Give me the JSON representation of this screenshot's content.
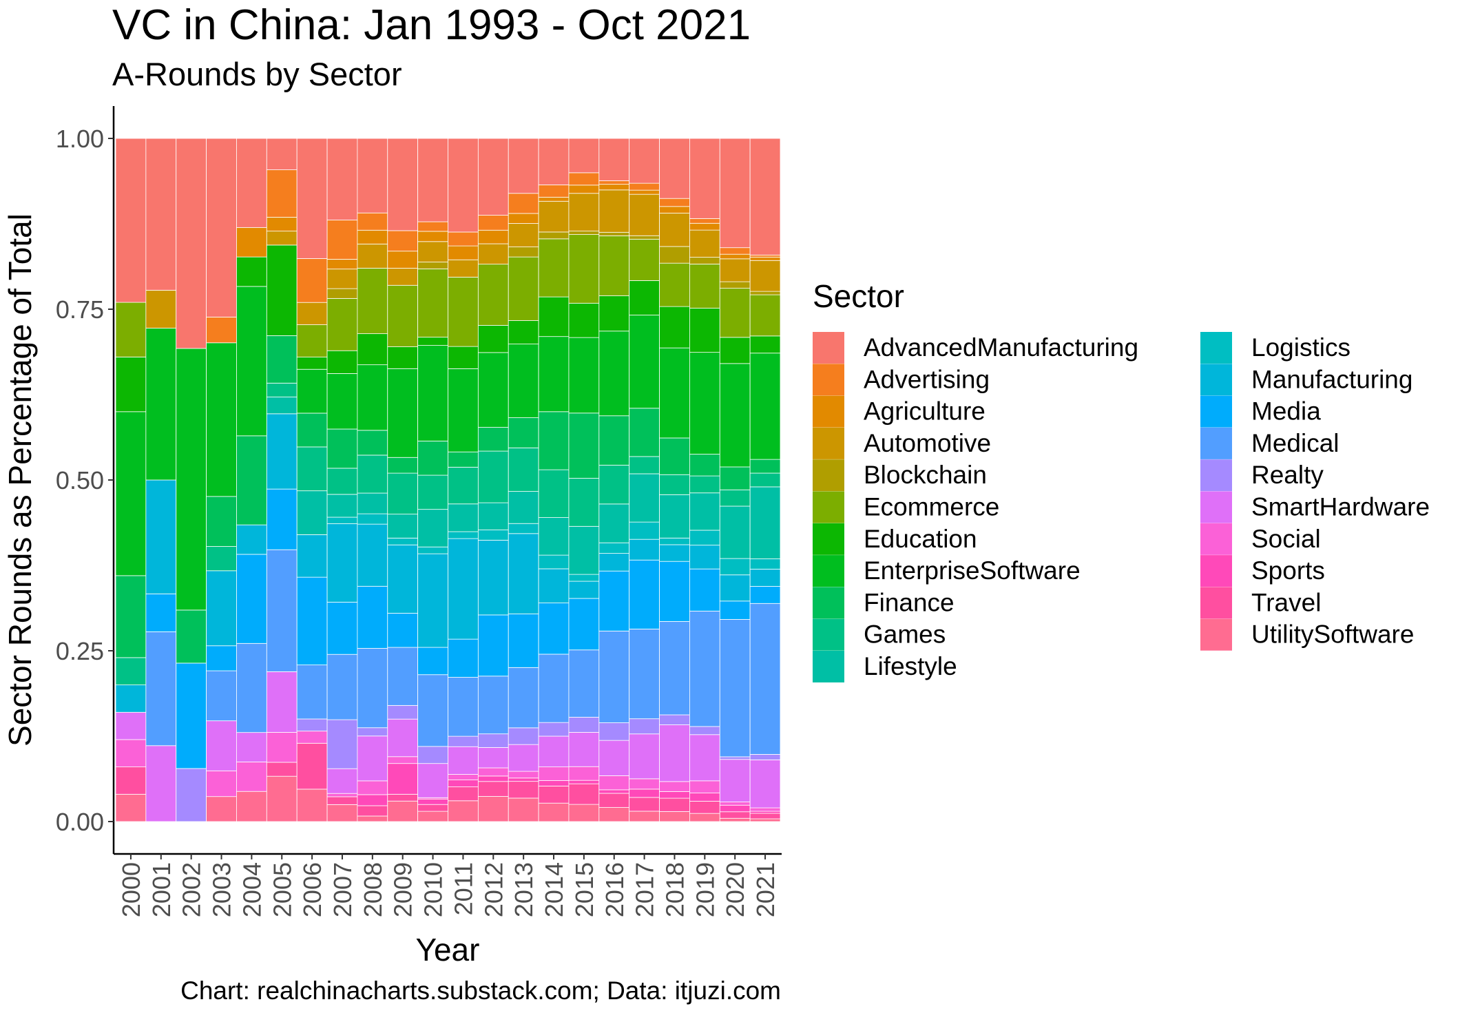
{
  "chart_data": {
    "type": "bar",
    "stacked": true,
    "title": "VC in China: Jan 1993 - Oct 2021",
    "subtitle": "A-Rounds by Sector",
    "xlabel": "Year",
    "ylabel": "Sector Rounds as Percentage of Total",
    "caption": "Chart: realchinacharts.substack.com; Data: itjuzi.com",
    "legend_title": "Sector",
    "legend_position": "right",
    "ylim": [
      0,
      1
    ],
    "y_ticks": [
      "0.00",
      "0.25",
      "0.50",
      "0.75",
      "1.00"
    ],
    "grid": false,
    "categories": [
      "2000",
      "2001",
      "2002",
      "2003",
      "2004",
      "2005",
      "2006",
      "2007",
      "2008",
      "2009",
      "2010",
      "2011",
      "2012",
      "2013",
      "2014",
      "2015",
      "2016",
      "2017",
      "2018",
      "2019",
      "2020",
      "2021"
    ],
    "series": [
      {
        "name": "AdvancedManufacturing",
        "color": "#F8766D",
        "values": [
          0.24,
          0.22,
          0.285,
          0.25,
          0.13,
          0.045,
          0.178,
          0.125,
          0.108,
          0.135,
          0.122,
          0.135,
          0.113,
          0.082,
          0.068,
          0.05,
          0.06,
          0.065,
          0.09,
          0.118,
          0.167,
          0.17
        ]
      },
      {
        "name": "Advertising",
        "color": "#F57E1E",
        "values": [
          0,
          0,
          0,
          0.036,
          0,
          0.068,
          0.065,
          0.06,
          0.025,
          0.03,
          0.014,
          0.02,
          0.022,
          0.03,
          0.018,
          0.018,
          0.005,
          0.01,
          0.012,
          0.007,
          0.01,
          0.003
        ]
      },
      {
        "name": "Agriculture",
        "color": "#E28A00",
        "values": [
          0,
          0,
          0,
          0,
          0.043,
          0.02,
          0,
          0.015,
          0.02,
          0.025,
          0.015,
          0.02,
          0.02,
          0.015,
          0.006,
          0.012,
          0.008,
          0.006,
          0.01,
          0.01,
          0.007,
          0.005
        ]
      },
      {
        "name": "Automotive",
        "color": "#CC9600",
        "values": [
          0,
          0.055,
          0,
          0,
          0,
          0.02,
          0.033,
          0.03,
          0.035,
          0.025,
          0.03,
          0.025,
          0.03,
          0.035,
          0.045,
          0.055,
          0.06,
          0.06,
          0.05,
          0.04,
          0.035,
          0.045
        ]
      },
      {
        "name": "Blockchain",
        "color": "#B09E00",
        "values": [
          0,
          0,
          0,
          0,
          0,
          0,
          0,
          0.015,
          0,
          0,
          0.01,
          0,
          0,
          0.015,
          0.01,
          0.005,
          0.005,
          0.005,
          0.025,
          0.01,
          0.01,
          0.005
        ]
      },
      {
        "name": "Ecommerce",
        "color": "#7CAE00",
        "values": [
          0.08,
          0,
          0,
          0,
          0,
          0,
          0.048,
          0.08,
          0.095,
          0.09,
          0.1,
          0.1,
          0.09,
          0.095,
          0.085,
          0.1,
          0.085,
          0.06,
          0.065,
          0.065,
          0.075,
          0.06
        ]
      },
      {
        "name": "Education",
        "color": "#0CB702",
        "values": [
          0.08,
          0,
          0,
          0,
          0.043,
          0.13,
          0.018,
          0.035,
          0.045,
          0.032,
          0.012,
          0.032,
          0.04,
          0.035,
          0.058,
          0.05,
          0.05,
          0.05,
          0.062,
          0.065,
          0.04,
          0.025
        ]
      },
      {
        "name": "EnterpriseSoftware",
        "color": "#00BE1F",
        "values": [
          0.24,
          0.22,
          0.355,
          0.215,
          0.218,
          0,
          0.065,
          0.085,
          0.095,
          0.13,
          0.14,
          0.12,
          0.11,
          0.11,
          0.11,
          0.11,
          0.12,
          0.135,
          0.135,
          0.15,
          0.158,
          0.155
        ]
      },
      {
        "name": "Finance",
        "color": "#00C05A",
        "values": [
          0.12,
          0,
          0.072,
          0.07,
          0.13,
          0.068,
          0.05,
          0.06,
          0.036,
          0.023,
          0.05,
          0.022,
          0.035,
          0.045,
          0.085,
          0.095,
          0.07,
          0.07,
          0.055,
          0.032,
          0.035,
          0.02
        ]
      },
      {
        "name": "Games",
        "color": "#00C186",
        "values": [
          0.04,
          0,
          0,
          0.034,
          0,
          0.02,
          0.065,
          0.04,
          0.055,
          0.06,
          0.05,
          0.053,
          0.076,
          0.065,
          0.07,
          0.07,
          0.055,
          0.025,
          0.03,
          0.025,
          0.025,
          0.02
        ]
      },
      {
        "name": "Lifestyle",
        "color": "#00BFA5",
        "values": [
          0,
          0,
          0,
          0,
          0,
          0.024,
          0.065,
          0.035,
          0.03,
          0.035,
          0.055,
          0.04,
          0.04,
          0.048,
          0.055,
          0.07,
          0.055,
          0.07,
          0.065,
          0.055,
          0.08,
          0.105
        ]
      },
      {
        "name": "Logistics",
        "color": "#00BEC2",
        "values": [
          0,
          0,
          0,
          0,
          0,
          0,
          0,
          0.01,
          0.015,
          0.01,
          0.01,
          0.01,
          0.015,
          0.015,
          0.02,
          0.01,
          0.015,
          0.025,
          0.01,
          0.022,
          0.025,
          0.015
        ]
      },
      {
        "name": "Manufacturing",
        "color": "#00B6DA",
        "values": [
          0.04,
          0.165,
          0,
          0.105,
          0.043,
          0.108,
          0.063,
          0.12,
          0.09,
          0.1,
          0.137,
          0.145,
          0.11,
          0.12,
          0.05,
          0.025,
          0.025,
          0.03,
          0.025,
          0.035,
          0.04,
          0.025
        ]
      },
      {
        "name": "Media",
        "color": "#00ACFC",
        "values": [
          0,
          0.055,
          0.143,
          0.035,
          0.13,
          0.087,
          0.13,
          0.08,
          0.09,
          0.05,
          0.04,
          0.055,
          0.09,
          0.08,
          0.075,
          0.075,
          0.085,
          0.1,
          0.09,
          0.062,
          0.028,
          0.025
        ]
      },
      {
        "name": "Medical",
        "color": "#529EFF",
        "values": [
          0,
          0.165,
          0,
          0.07,
          0.13,
          0.175,
          0.08,
          0.1,
          0.115,
          0.085,
          0.105,
          0.085,
          0.085,
          0.09,
          0.1,
          0.098,
          0.13,
          0.13,
          0.14,
          0.17,
          0.21,
          0.22
        ]
      },
      {
        "name": "Realty",
        "color": "#A58AFF",
        "values": [
          0,
          0,
          0.072,
          0,
          0,
          0,
          0.018,
          0.075,
          0.012,
          0.02,
          0.025,
          0.015,
          0.02,
          0.025,
          0.02,
          0.022,
          0.025,
          0.022,
          0.015,
          0.012,
          0.004,
          0.008
        ]
      },
      {
        "name": "SmartHardware",
        "color": "#DF70F8",
        "values": [
          0.04,
          0.11,
          0,
          0.07,
          0.043,
          0.087,
          0,
          0.038,
          0.065,
          0.055,
          0.05,
          0.04,
          0.03,
          0.04,
          0.045,
          0.05,
          0.05,
          0.065,
          0.085,
          0.068,
          0.065,
          0.07
        ]
      },
      {
        "name": "Social",
        "color": "#FB61D7",
        "values": [
          0.04,
          0,
          0,
          0.036,
          0.043,
          0.043,
          0.018,
          0.005,
          0.02,
          0.01,
          0.002,
          0.008,
          0.012,
          0.01,
          0.02,
          0.02,
          0.02,
          0.015,
          0.015,
          0.018,
          0.005,
          0.005
        ]
      },
      {
        "name": "Sports",
        "color": "#FF49B9",
        "values": [
          0,
          0,
          0,
          0,
          0,
          0,
          0,
          0,
          0.016,
          0.045,
          0.008,
          0.01,
          0.008,
          0.005,
          0.008,
          0.005,
          0.005,
          0.012,
          0.01,
          0.012,
          0.01,
          0.003
        ]
      },
      {
        "name": "Travel",
        "color": "#FF4FA0",
        "values": [
          0.04,
          0,
          0,
          0,
          0,
          0.02,
          0.068,
          0.012,
          0.015,
          0.01,
          0.01,
          0.02,
          0.022,
          0.025,
          0.025,
          0.03,
          0.02,
          0.02,
          0.02,
          0.018,
          0.01,
          0.008
        ]
      },
      {
        "name": "UtilitySoftware",
        "color": "#FF6C91",
        "values": [
          0.04,
          0,
          0,
          0.035,
          0.044,
          0.065,
          0.048,
          0.026,
          0.008,
          0.03,
          0.015,
          0.03,
          0.037,
          0.035,
          0.027,
          0.025,
          0.02,
          0.015,
          0.015,
          0.012,
          0.005,
          0.004
        ]
      }
    ]
  }
}
